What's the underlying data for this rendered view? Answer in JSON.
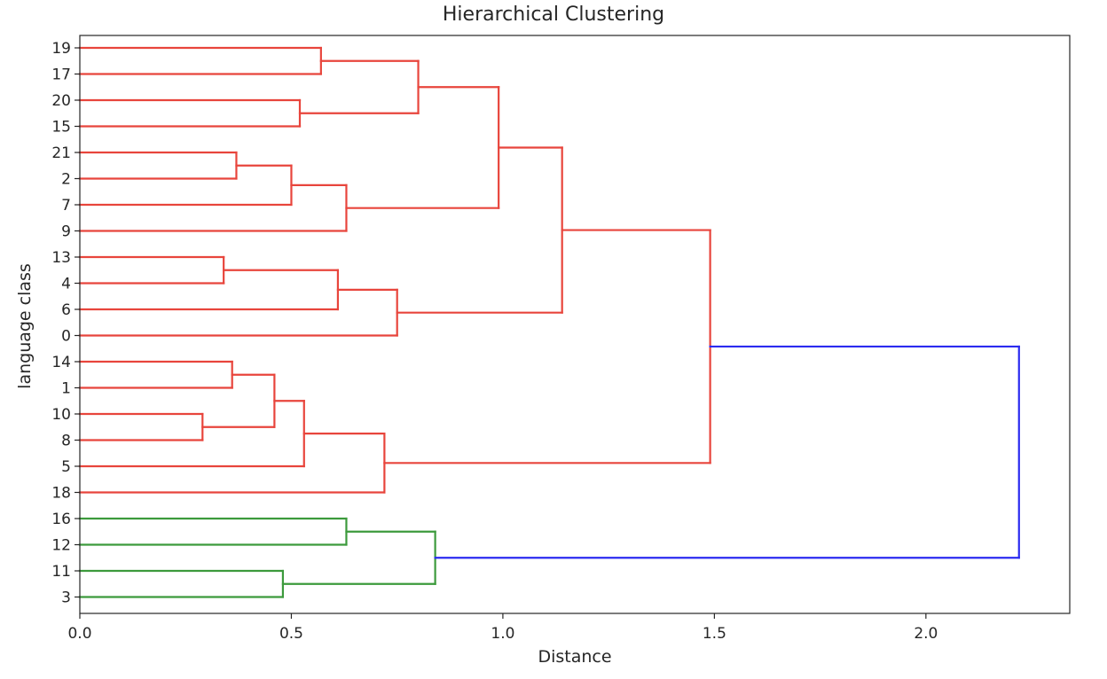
{
  "chart_data": {
    "type": "dendrogram",
    "title": "Hierarchical Clustering",
    "xlabel": "Distance",
    "ylabel": "language class",
    "xlim": [
      0.0,
      2.34
    ],
    "x_ticks": [
      0.0,
      0.5,
      1.0,
      1.5,
      2.0
    ],
    "x_tick_labels": [
      "0.0",
      "0.5",
      "1.0",
      "1.5",
      "2.0"
    ],
    "grid": false,
    "leaves": [
      "19",
      "17",
      "20",
      "15",
      "21",
      "2",
      "7",
      "9",
      "13",
      "4",
      "6",
      "0",
      "14",
      "1",
      "10",
      "8",
      "5",
      "18",
      "16",
      "12",
      "11",
      "3"
    ],
    "merges": [
      {
        "id": "A",
        "children": [
          "19",
          "17"
        ],
        "distance": 0.57,
        "color": "#e8453c"
      },
      {
        "id": "B",
        "children": [
          "20",
          "15"
        ],
        "distance": 0.52,
        "color": "#e8453c"
      },
      {
        "id": "C",
        "children": [
          "A",
          "B"
        ],
        "distance": 0.8,
        "color": "#e8453c"
      },
      {
        "id": "D",
        "children": [
          "21",
          "2"
        ],
        "distance": 0.37,
        "color": "#e8453c"
      },
      {
        "id": "E",
        "children": [
          "D",
          "7"
        ],
        "distance": 0.5,
        "color": "#e8453c"
      },
      {
        "id": "F",
        "children": [
          "E",
          "9"
        ],
        "distance": 0.63,
        "color": "#e8453c"
      },
      {
        "id": "G",
        "children": [
          "C",
          "F"
        ],
        "distance": 0.99,
        "color": "#e8453c"
      },
      {
        "id": "H",
        "children": [
          "13",
          "4"
        ],
        "distance": 0.34,
        "color": "#e8453c"
      },
      {
        "id": "I",
        "children": [
          "H",
          "6"
        ],
        "distance": 0.61,
        "color": "#e8453c"
      },
      {
        "id": "J",
        "children": [
          "I",
          "0"
        ],
        "distance": 0.75,
        "color": "#e8453c"
      },
      {
        "id": "K",
        "children": [
          "G",
          "J"
        ],
        "distance": 1.14,
        "color": "#e8453c"
      },
      {
        "id": "L",
        "children": [
          "14",
          "1"
        ],
        "distance": 0.36,
        "color": "#e8453c"
      },
      {
        "id": "M",
        "children": [
          "10",
          "8"
        ],
        "distance": 0.29,
        "color": "#e8453c"
      },
      {
        "id": "N",
        "children": [
          "L",
          "M"
        ],
        "distance": 0.46,
        "color": "#e8453c"
      },
      {
        "id": "O",
        "children": [
          "N",
          "5"
        ],
        "distance": 0.53,
        "color": "#e8453c"
      },
      {
        "id": "P",
        "children": [
          "O",
          "18"
        ],
        "distance": 0.72,
        "color": "#e8453c"
      },
      {
        "id": "Q",
        "children": [
          "K",
          "P"
        ],
        "distance": 1.49,
        "color": "#e8453c"
      },
      {
        "id": "R",
        "children": [
          "16",
          "12"
        ],
        "distance": 0.63,
        "color": "#3c9a3c"
      },
      {
        "id": "S",
        "children": [
          "11",
          "3"
        ],
        "distance": 0.48,
        "color": "#3c9a3c"
      },
      {
        "id": "T",
        "children": [
          "R",
          "S"
        ],
        "distance": 0.84,
        "color": "#3c9a3c"
      },
      {
        "id": "U",
        "children": [
          "Q",
          "T"
        ],
        "distance": 2.22,
        "color": "#2b2bf0"
      }
    ]
  }
}
